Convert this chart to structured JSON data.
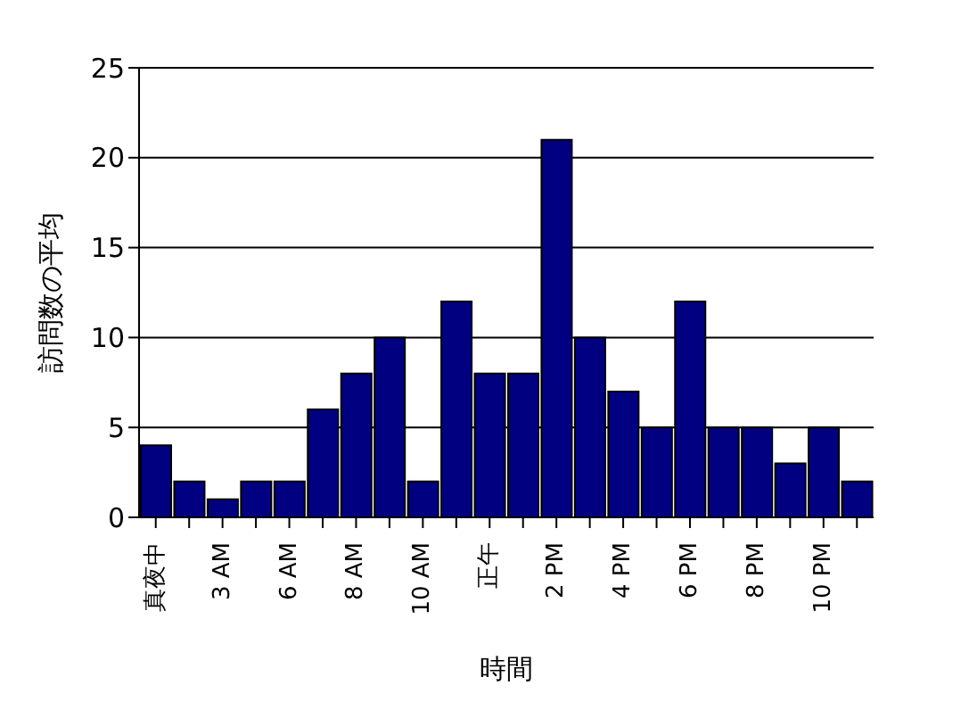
{
  "chart_data": {
    "type": "bar",
    "xlabel": "時間",
    "ylabel": "訪問数の平均",
    "categories": [
      "真夜中",
      null,
      "3 AM",
      null,
      "6 AM",
      null,
      "8 AM",
      null,
      "10 AM",
      null,
      "正午",
      null,
      "2 PM",
      null,
      "4 PM",
      null,
      "6 PM",
      null,
      "8 PM",
      null,
      "10 PM",
      null
    ],
    "values": [
      4,
      2,
      1,
      2,
      2,
      6,
      8,
      10,
      2,
      12,
      8,
      8,
      21,
      10,
      7,
      5,
      12,
      5,
      5,
      3,
      5,
      2
    ],
    "color": "#000080",
    "ylim": [
      0,
      25
    ],
    "yticks": [
      0,
      5,
      10,
      15,
      20,
      25
    ],
    "grid": "y",
    "legend": false
  }
}
